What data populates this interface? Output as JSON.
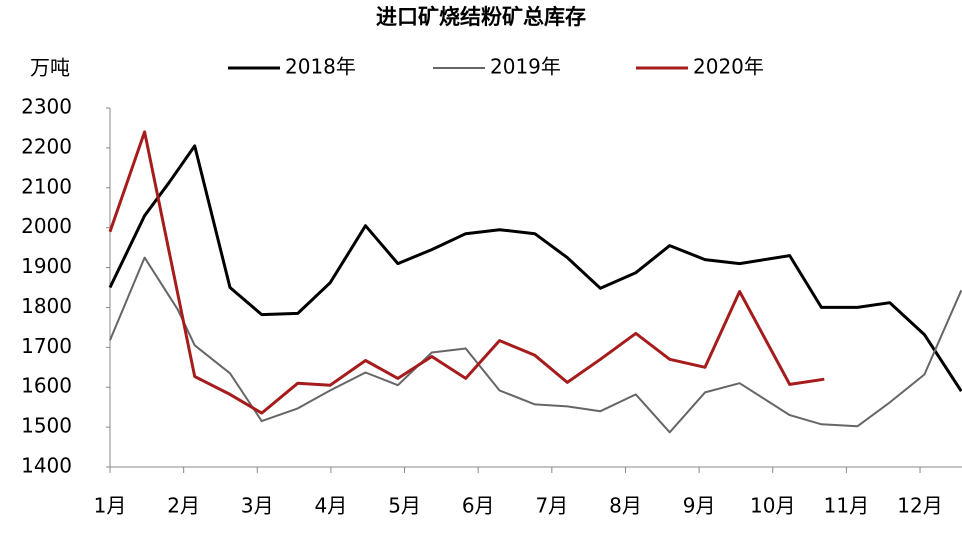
{
  "chart_data": {
    "type": "line",
    "title": "进口矿烧结粉矿总库存",
    "y_label": "万吨",
    "xlim": [
      1,
      12.57
    ],
    "xticks": [
      {
        "value": 1,
        "label": "1月"
      },
      {
        "value": 2,
        "label": "2月"
      },
      {
        "value": 3,
        "label": "3月"
      },
      {
        "value": 4,
        "label": "4月"
      },
      {
        "value": 5,
        "label": "5月"
      },
      {
        "value": 6,
        "label": "6月"
      },
      {
        "value": 7,
        "label": "7月"
      },
      {
        "value": 8,
        "label": "8月"
      },
      {
        "value": 9,
        "label": "9月"
      },
      {
        "value": 10,
        "label": "10月"
      },
      {
        "value": 11,
        "label": "11月"
      },
      {
        "value": 12,
        "label": "12月"
      }
    ],
    "ylim": [
      1400,
      2300
    ],
    "yticks": [
      1400,
      1500,
      1600,
      1700,
      1800,
      1900,
      2000,
      2100,
      2200,
      2300
    ],
    "grid": false,
    "series": [
      {
        "name": "2018年",
        "color": "#000000",
        "width": 3,
        "x": [
          1.0,
          1.47,
          1.81,
          2.15,
          2.63,
          3.06,
          3.55,
          3.99,
          4.47,
          4.91,
          5.37,
          5.83,
          6.29,
          6.77,
          7.21,
          7.66,
          8.14,
          8.6,
          9.08,
          9.55,
          10.23,
          10.66,
          11.15,
          11.59,
          12.06,
          12.56
        ],
        "values": [
          1850,
          2030,
          2115,
          2205,
          1850,
          1782,
          1785,
          1862,
          2005,
          1910,
          1945,
          1985,
          1995,
          1985,
          1925,
          1848,
          1887,
          1955,
          1920,
          1910,
          1930,
          1800,
          1800,
          1812,
          1732,
          1590
        ]
      },
      {
        "name": "2019年",
        "color": "#666666",
        "width": 2,
        "x": [
          1.0,
          1.47,
          1.92,
          2.15,
          2.63,
          3.06,
          3.55,
          3.99,
          4.47,
          4.91,
          5.37,
          5.83,
          6.29,
          6.77,
          7.21,
          7.66,
          8.14,
          8.6,
          9.08,
          9.55,
          10.23,
          10.66,
          11.15,
          11.59,
          12.06,
          12.56
        ],
        "values": [
          1718,
          1925,
          1795,
          1705,
          1635,
          1515,
          1547,
          1592,
          1637,
          1605,
          1687,
          1697,
          1592,
          1557,
          1552,
          1540,
          1582,
          1487,
          1587,
          1610,
          1530,
          1507,
          1502,
          1562,
          1632,
          1843
        ]
      },
      {
        "name": "2020年",
        "color": "#a61c1c",
        "width": 3,
        "x": [
          1.0,
          1.47,
          2.15,
          2.63,
          3.06,
          3.55,
          3.99,
          4.47,
          4.91,
          5.37,
          5.83,
          6.29,
          6.77,
          7.21,
          7.66,
          8.14,
          8.6,
          9.08,
          9.55,
          10.23,
          10.7
        ],
        "values": [
          1990,
          2240,
          1627,
          1582,
          1535,
          1610,
          1605,
          1667,
          1622,
          1677,
          1622,
          1717,
          1680,
          1612,
          1670,
          1735,
          1670,
          1650,
          1840,
          1607,
          1620
        ]
      }
    ]
  }
}
